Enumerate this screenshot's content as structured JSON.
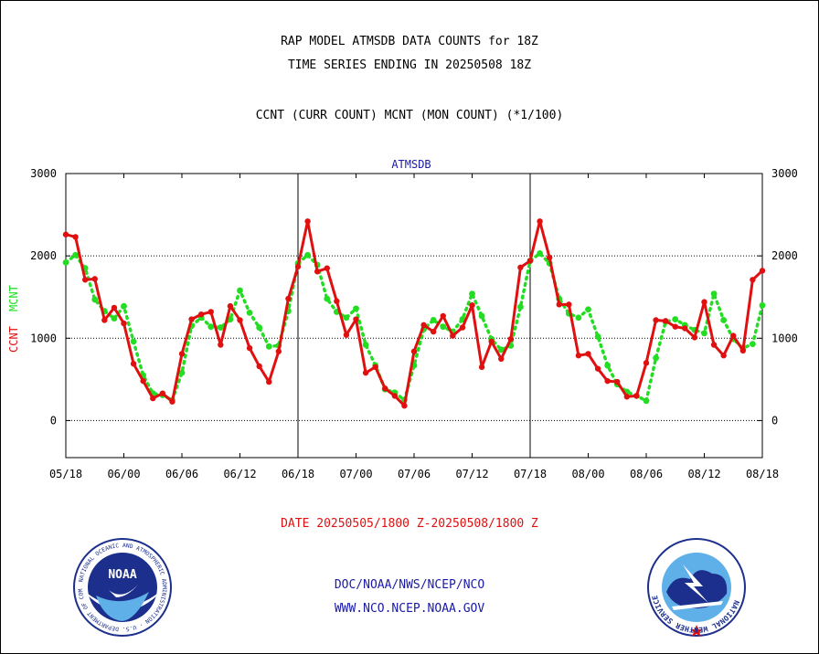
{
  "header": {
    "title_line1": "RAP MODEL ATMSDB DATA COUNTS for 18Z",
    "title_line2": "TIME SERIES ENDING IN 20250508 18Z",
    "subtitle": "CCNT (CURR COUNT) MCNT (MON COUNT) (*1/100)"
  },
  "chart_data": {
    "type": "line",
    "title": "ATMSDB",
    "ylabel_left_1": "CCNT",
    "ylabel_left_2": "MCNT",
    "ylim": [
      -450,
      3000
    ],
    "yticks": [
      0,
      1000,
      2000,
      3000
    ],
    "x_ticks": [
      "05/18",
      "06/00",
      "06/06",
      "06/12",
      "06/18",
      "07/00",
      "07/06",
      "07/12",
      "07/18",
      "08/00",
      "08/06",
      "08/12",
      "08/18"
    ],
    "x_range_hours": [
      0,
      72
    ],
    "grid": {
      "horizontal": [
        1000,
        2000
      ],
      "vertical_days": [
        24,
        48
      ]
    },
    "colors": {
      "ccnt": "#e01010",
      "mcnt": "#22dd22",
      "title": "#1a1aa8"
    },
    "series": [
      {
        "name": "CCNT",
        "x": [
          0,
          1,
          2,
          3,
          4,
          5,
          6,
          7,
          8,
          9,
          10,
          11,
          12,
          13,
          14,
          15,
          16,
          17,
          18,
          19,
          20,
          21,
          22,
          23,
          24,
          25,
          26,
          27,
          28,
          29,
          30,
          31,
          32,
          33,
          34,
          35,
          36,
          37,
          38,
          39,
          40,
          41,
          42,
          43,
          44,
          45,
          46,
          47,
          48,
          49,
          50,
          51,
          52,
          53,
          54,
          55,
          56,
          57,
          58,
          59,
          60,
          61,
          62,
          63,
          64,
          65,
          66,
          67,
          68,
          69,
          70,
          71,
          72
        ],
        "values": [
          2260,
          2230,
          1710,
          1720,
          1220,
          1370,
          1180,
          690,
          480,
          270,
          330,
          230,
          810,
          1230,
          1290,
          1320,
          920,
          1390,
          1220,
          880,
          660,
          470,
          840,
          1480,
          1870,
          2420,
          1810,
          1850,
          1450,
          1040,
          1230,
          580,
          650,
          390,
          300,
          180,
          840,
          1160,
          1080,
          1270,
          1030,
          1130,
          1400,
          650,
          960,
          750,
          990,
          1860,
          1940,
          2420,
          1980,
          1410,
          1410,
          790,
          810,
          630,
          480,
          470,
          290,
          300,
          700,
          1220,
          1210,
          1140,
          1120,
          1010,
          1440,
          920,
          790,
          1030,
          850,
          1710,
          1820
        ]
      },
      {
        "name": "MCNT",
        "x": [
          0,
          1,
          2,
          3,
          4,
          5,
          6,
          7,
          8,
          9,
          10,
          11,
          12,
          13,
          14,
          15,
          16,
          17,
          18,
          19,
          20,
          21,
          22,
          23,
          24,
          25,
          26,
          27,
          28,
          29,
          30,
          31,
          32,
          33,
          34,
          35,
          36,
          37,
          38,
          39,
          40,
          41,
          42,
          43,
          44,
          45,
          46,
          47,
          48,
          49,
          50,
          51,
          52,
          53,
          54,
          55,
          56,
          57,
          58,
          59,
          60,
          61,
          62,
          63,
          64,
          65,
          66,
          67,
          68,
          69,
          70,
          71,
          72
        ],
        "values": [
          1920,
          2010,
          1850,
          1470,
          1330,
          1240,
          1390,
          960,
          550,
          330,
          310,
          250,
          580,
          1150,
          1250,
          1140,
          1130,
          1230,
          1580,
          1310,
          1130,
          900,
          910,
          1330,
          1910,
          2010,
          1890,
          1480,
          1320,
          1250,
          1360,
          920,
          670,
          380,
          340,
          250,
          670,
          1110,
          1220,
          1140,
          1080,
          1230,
          1540,
          1270,
          990,
          860,
          910,
          1380,
          1940,
          2030,
          1910,
          1480,
          1300,
          1250,
          1350,
          1020,
          670,
          440,
          350,
          300,
          240,
          760,
          1200,
          1230,
          1160,
          1100,
          1060,
          1540,
          1220,
          990,
          880,
          930,
          1400
        ]
      }
    ]
  },
  "footer": {
    "date_range": "DATE 20250505/1800 Z-20250508/1800 Z",
    "link1": "DOC/NOAA/NWS/NCEP/NCO",
    "link2": "WWW.NCO.NCEP.NOAA.GOV"
  },
  "logos": {
    "noaa_text": "NOAA",
    "noaa_ring_text": "NATIONAL OCEANIC AND ATMOSPHERIC ADMINISTRATION · U.S. DEPARTMENT OF COMMERCE",
    "nws_ring_text": "NATIONAL WEATHER SERVICE"
  }
}
